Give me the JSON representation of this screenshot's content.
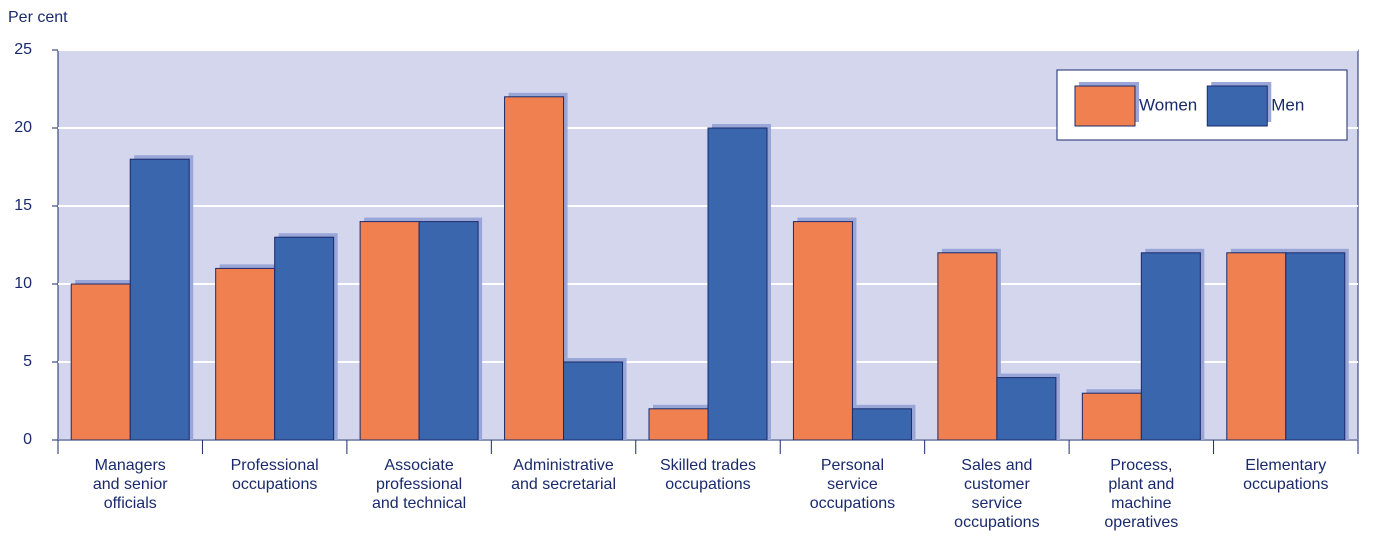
{
  "chart_data": {
    "type": "bar",
    "y_label": "Per cent",
    "categories": [
      "Managers\nand senior\nofficials",
      "Professional\noccupations",
      "Associate\nprofessional\nand technical",
      "Administrative\nand secretarial",
      "Skilled trades\noccupations",
      "Personal\nservice\noccupations",
      "Sales and\ncustomer\nservice\noccupations",
      "Process,\nplant and\nmachine\noperatives",
      "Elementary\noccupations"
    ],
    "series": [
      {
        "name": "Women",
        "color": "#f0804f",
        "values": [
          10,
          11,
          14,
          22,
          2,
          14,
          12,
          3,
          12
        ]
      },
      {
        "name": "Men",
        "color": "#3a66ad",
        "values": [
          18,
          13,
          14,
          5,
          20,
          2,
          4,
          12,
          12
        ]
      }
    ],
    "ylim": [
      0,
      25
    ],
    "yticks": [
      0,
      5,
      10,
      15,
      20,
      25
    ],
    "grid": true,
    "legend": "top-right"
  }
}
